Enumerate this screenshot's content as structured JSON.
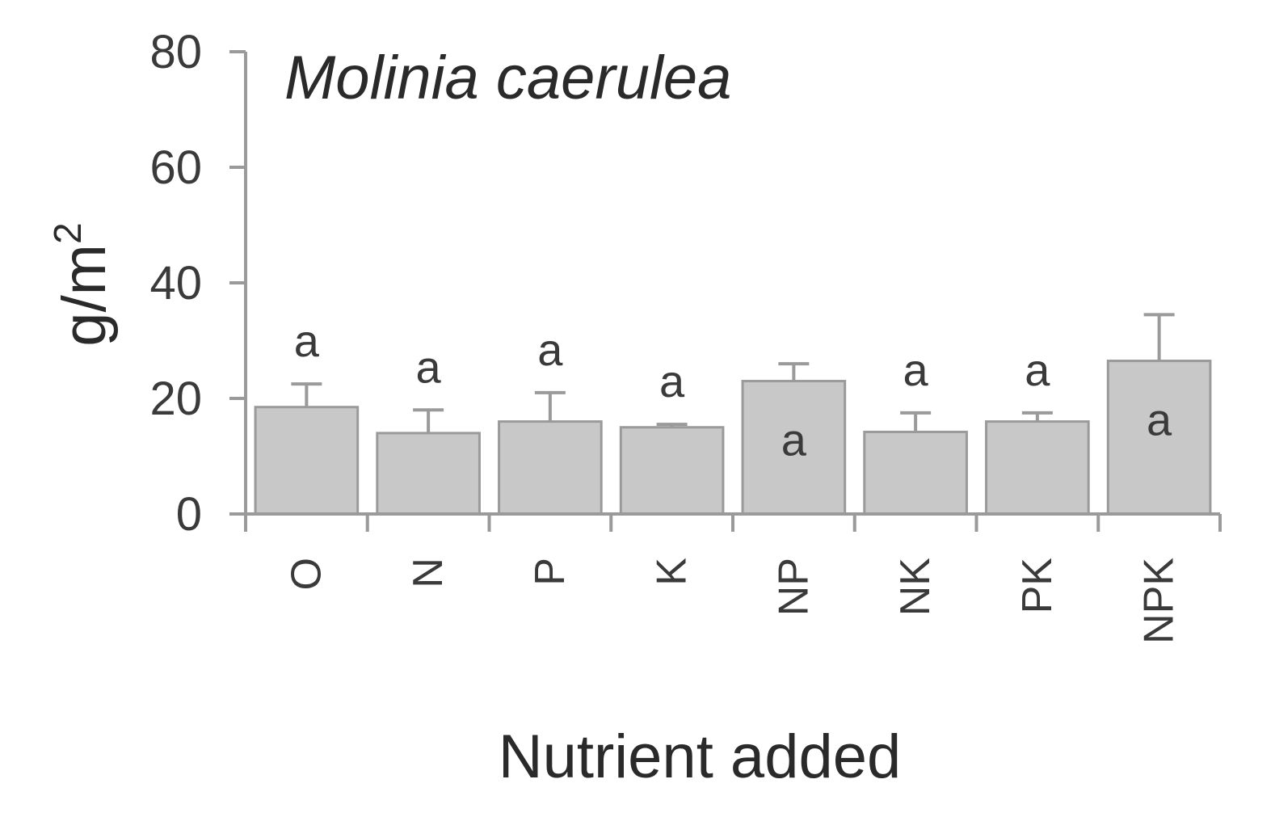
{
  "chart_data": {
    "type": "bar",
    "title": "Molinia caerulea",
    "xlabel": "Nutrient added",
    "ylabel": "g/m",
    "ylabel_superscript": "2",
    "ylim": [
      0,
      80
    ],
    "yticks": [
      "0",
      "20",
      "40",
      "60",
      "80"
    ],
    "grid": false,
    "legend": "none",
    "categories": [
      "O",
      "N",
      "P",
      "K",
      "NP",
      "NK",
      "PK",
      "NPK"
    ],
    "values": [
      18.5,
      14,
      16,
      15,
      23,
      14.2,
      16,
      26.5
    ],
    "error": [
      4,
      4,
      5,
      0.5,
      3,
      3.3,
      1.5,
      8
    ],
    "significance": [
      "a",
      "a",
      "a",
      "a",
      "a",
      "a",
      "a",
      "a"
    ],
    "significance_position": [
      "above",
      "above",
      "above",
      "above",
      "inside",
      "above",
      "above",
      "inside"
    ],
    "colors": {
      "bar": "#c8c8c8",
      "axis": "#9a9a9a",
      "text": "#3a3a3a"
    }
  }
}
